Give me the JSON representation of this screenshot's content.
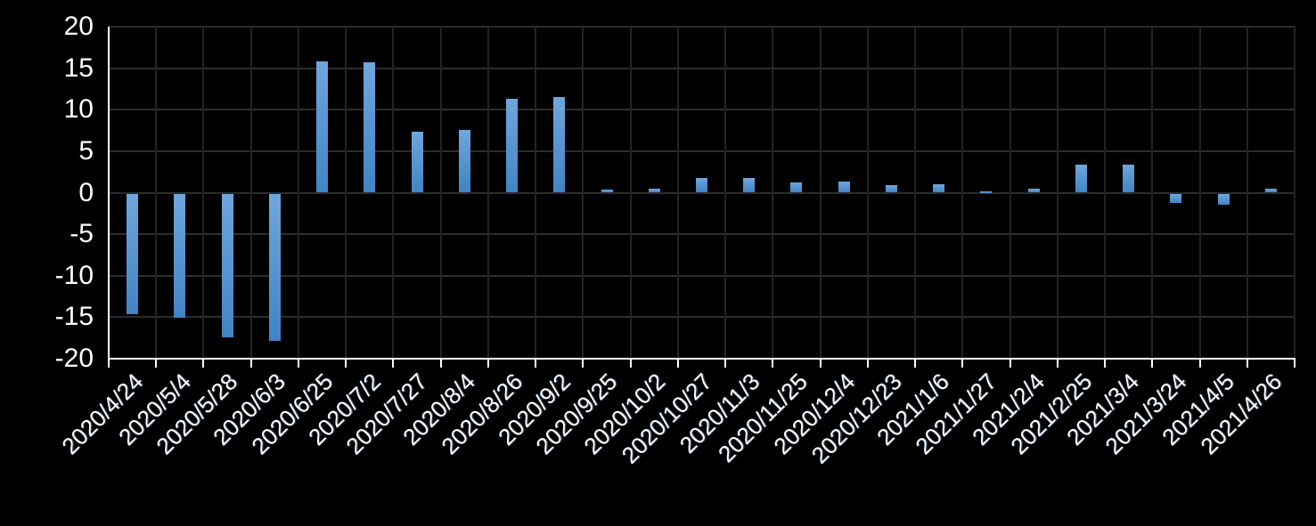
{
  "chart_data": {
    "type": "bar",
    "title": "",
    "xlabel": "",
    "ylabel": "",
    "categories": [
      "2020/4/24",
      "2020/5/4",
      "2020/5/28",
      "2020/6/3",
      "2020/6/25",
      "2020/7/2",
      "2020/7/27",
      "2020/8/4",
      "2020/8/26",
      "2020/9/2",
      "2020/9/25",
      "2020/10/2",
      "2020/10/27",
      "2020/11/3",
      "2020/11/25",
      "2020/12/4",
      "2020/12/23",
      "2021/1/6",
      "2021/1/27",
      "2021/2/4",
      "2021/2/25",
      "2021/3/4",
      "2021/3/24",
      "2021/4/5",
      "2021/4/26"
    ],
    "values": [
      -14.5,
      -15.0,
      -17.3,
      -17.8,
      15.8,
      15.7,
      7.3,
      7.6,
      11.3,
      11.5,
      0.4,
      0.5,
      1.8,
      1.8,
      1.2,
      1.3,
      0.9,
      1.0,
      0.2,
      0.5,
      3.4,
      3.4,
      -1.1,
      -1.3,
      0.5
    ],
    "ylim": [
      -20,
      20
    ],
    "yticks": [
      20,
      15,
      10,
      5,
      0,
      -5,
      -10,
      -15,
      -20
    ],
    "grid": "horizontal-and-vertical",
    "legend": "none",
    "colors": {
      "background": "#000000",
      "bar_gradient_top": "#6FA6DC",
      "bar_gradient_bottom": "#4184C5",
      "axis_line": "#FFFFFF",
      "gridline_horizontal": "#2D2D2D",
      "gridline_vertical": "#232323",
      "tick_label": "#FFFFFF"
    }
  }
}
